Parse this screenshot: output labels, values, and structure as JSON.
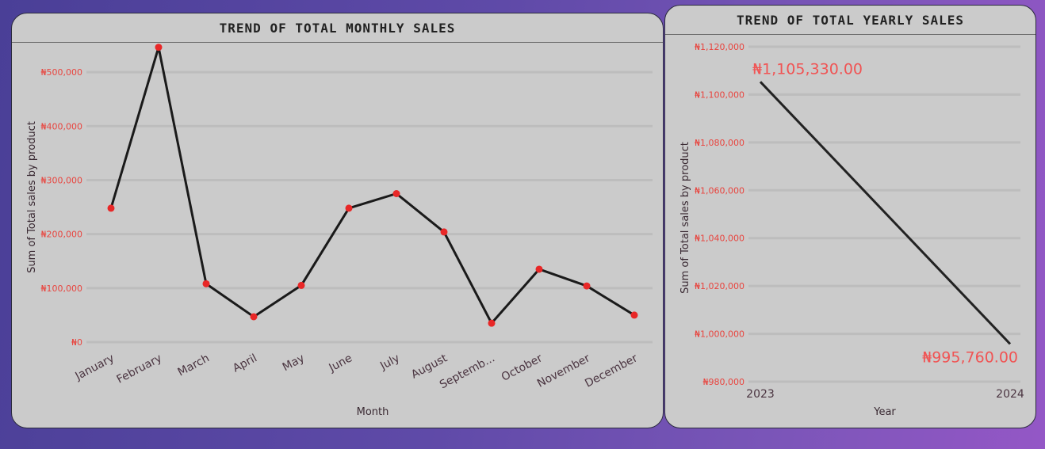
{
  "colors": {
    "line": "#1a1a1a",
    "marker": "#e82727",
    "tick_text": "#e8453f",
    "data_label": "#f05454",
    "panel_bg": "#cbcbcb"
  },
  "chart_data": [
    {
      "type": "line",
      "title": "TREND OF TOTAL MONTHLY SALES",
      "xlabel": "Month",
      "ylabel": "Sum of Total sales by product",
      "categories": [
        "January",
        "February",
        "March",
        "April",
        "May",
        "June",
        "July",
        "August",
        "Septemb...",
        "October",
        "November",
        "December"
      ],
      "values": [
        248000,
        546000,
        108000,
        47000,
        105000,
        248000,
        275000,
        204000,
        35000,
        135000,
        104000,
        50000
      ],
      "ylim": [
        0,
        550000
      ],
      "yticks": [
        0,
        100000,
        200000,
        300000,
        400000,
        500000
      ],
      "ytick_labels": [
        "₦0",
        "₦100,000",
        "₦200,000",
        "₦300,000",
        "₦400,000",
        "₦500,000"
      ],
      "grid": true,
      "markers": true
    },
    {
      "type": "line",
      "title": "TREND OF TOTAL YEARLY SALES",
      "xlabel": "Year",
      "ylabel": "Sum of Total sales by product",
      "categories": [
        "2023",
        "2024"
      ],
      "values": [
        1105330,
        995760
      ],
      "data_labels": [
        "₦1,105,330.00",
        "₦995,760.00"
      ],
      "ylim": [
        980000,
        1120000
      ],
      "yticks": [
        980000,
        1000000,
        1020000,
        1040000,
        1060000,
        1080000,
        1100000,
        1120000
      ],
      "ytick_labels": [
        "₦980,000",
        "₦1,000,000",
        "₦1,020,000",
        "₦1,040,000",
        "₦1,060,000",
        "₦1,080,000",
        "₦1,100,000",
        "₦1,120,000"
      ],
      "grid": true,
      "markers": false
    }
  ]
}
